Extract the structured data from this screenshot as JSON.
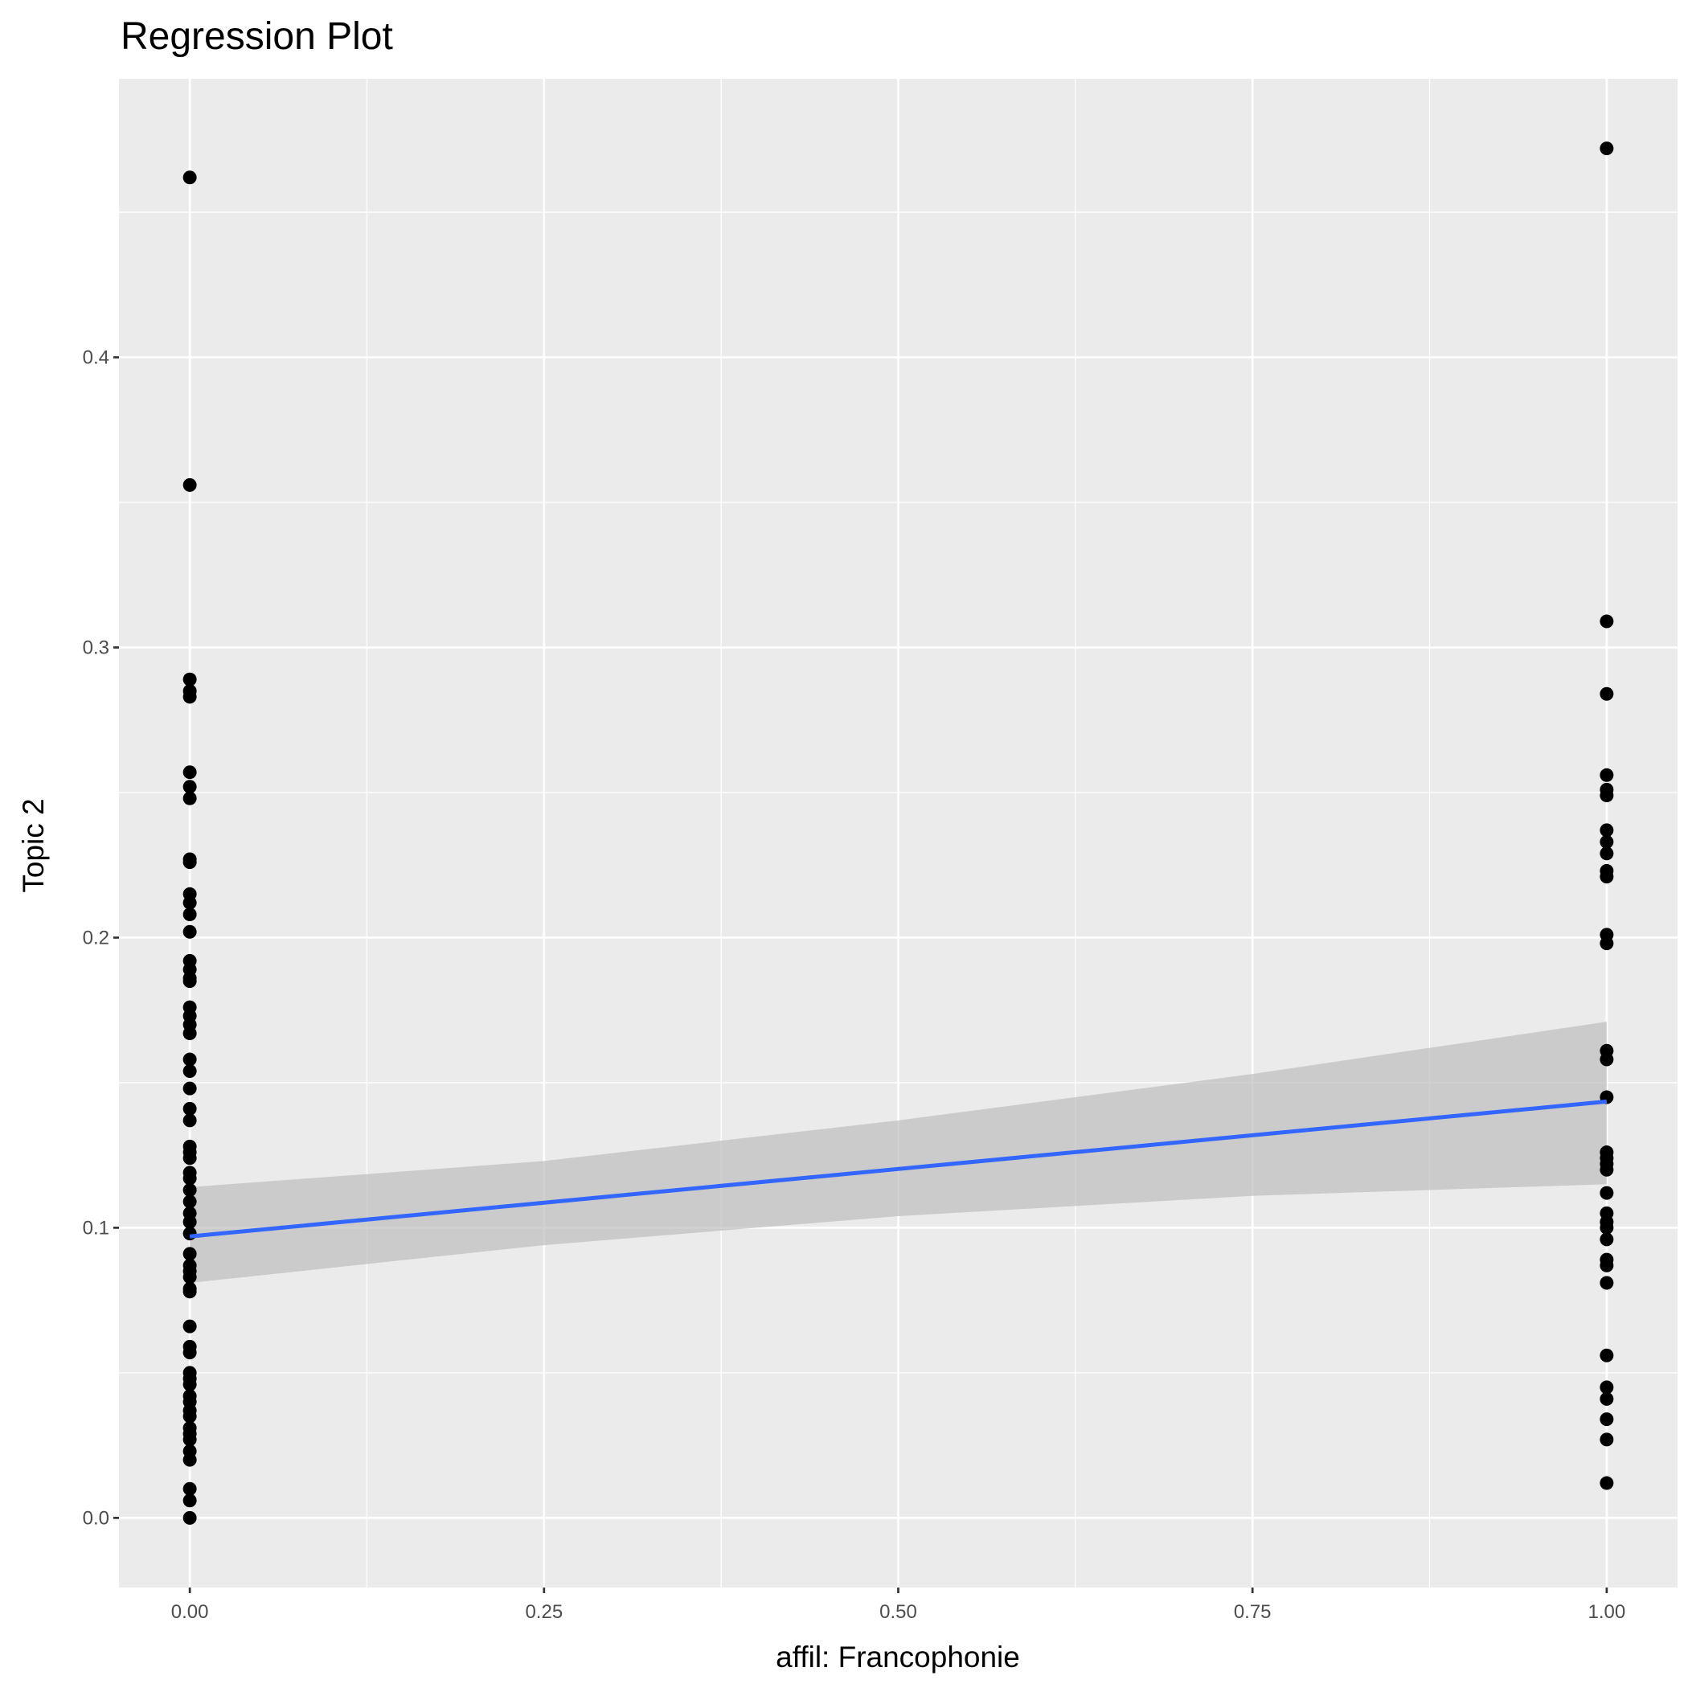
{
  "chart_data": {
    "type": "scatter",
    "title": "Regression Plot",
    "xlabel": "affil: Francophonie",
    "ylabel": "Topic 2",
    "xlim": [
      -0.05,
      1.05
    ],
    "ylim": [
      -0.024,
      0.496
    ],
    "x_ticks": [
      0,
      0.25,
      0.5,
      0.75,
      1.0
    ],
    "x_tick_labels": [
      "0.00",
      "0.25",
      "0.50",
      "0.75",
      "1.00"
    ],
    "y_ticks": [
      0,
      0.1,
      0.2,
      0.3,
      0.4
    ],
    "y_tick_labels": [
      "0.0",
      "0.1",
      "0.2",
      "0.3",
      "0.4"
    ],
    "grid": true,
    "series": [
      {
        "name": "affil 0",
        "x": 0,
        "values": [
          0.462,
          0.356,
          0.289,
          0.285,
          0.283,
          0.257,
          0.252,
          0.248,
          0.227,
          0.226,
          0.215,
          0.212,
          0.208,
          0.202,
          0.192,
          0.189,
          0.186,
          0.185,
          0.176,
          0.173,
          0.17,
          0.167,
          0.158,
          0.154,
          0.148,
          0.141,
          0.137,
          0.128,
          0.126,
          0.124,
          0.119,
          0.117,
          0.113,
          0.109,
          0.105,
          0.102,
          0.098,
          0.091,
          0.087,
          0.085,
          0.083,
          0.079,
          0.078,
          0.066,
          0.059,
          0.057,
          0.05,
          0.048,
          0.046,
          0.042,
          0.04,
          0.037,
          0.035,
          0.031,
          0.029,
          0.027,
          0.023,
          0.02,
          0.01,
          0.006,
          0.0
        ]
      },
      {
        "name": "affil 1",
        "x": 1,
        "values": [
          0.472,
          0.309,
          0.284,
          0.256,
          0.251,
          0.249,
          0.237,
          0.233,
          0.229,
          0.223,
          0.221,
          0.201,
          0.198,
          0.161,
          0.158,
          0.145,
          0.126,
          0.124,
          0.122,
          0.12,
          0.112,
          0.105,
          0.102,
          0.1,
          0.096,
          0.089,
          0.087,
          0.081,
          0.056,
          0.045,
          0.041,
          0.034,
          0.027,
          0.012
        ]
      }
    ],
    "regression": {
      "x": [
        0,
        1
      ],
      "y": [
        0.097,
        0.1435
      ],
      "color": "#3366ff",
      "ci": {
        "x": [
          0,
          0.25,
          0.5,
          0.75,
          1
        ],
        "upper": [
          0.114,
          0.123,
          0.137,
          0.153,
          0.171
        ],
        "lower": [
          0.081,
          0.094,
          0.104,
          0.111,
          0.115
        ]
      }
    },
    "colors": {
      "panel": "#ebebeb",
      "grid": "#ffffff",
      "points": "#000000",
      "band": "#bebebe"
    }
  }
}
